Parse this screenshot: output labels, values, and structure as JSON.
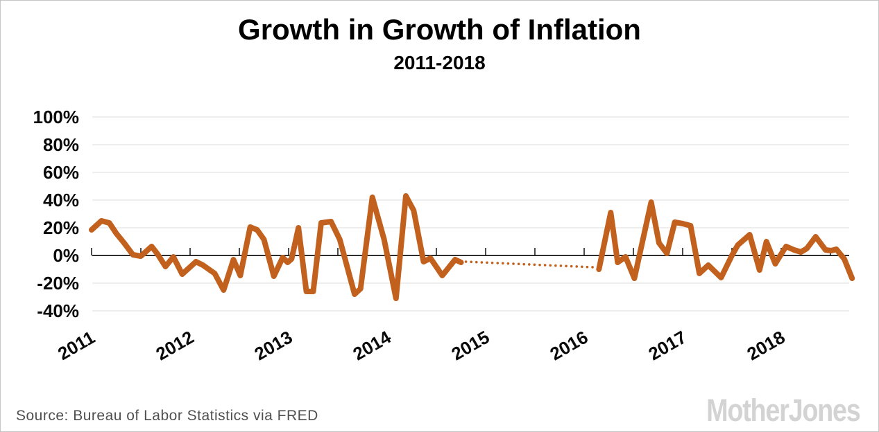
{
  "header": {
    "title": "Growth in Growth of Inflation",
    "subtitle": "2011-2018"
  },
  "footer": {
    "source": "Source: Bureau of Labor Statistics via FRED",
    "watermark": "MotherJones"
  },
  "colors": {
    "line": "#c2601d",
    "grid": "#e3e3e3",
    "axis": "#111111",
    "tick_label": "#0a0a0a",
    "source_text": "#4f4f4f",
    "watermark": "#d3d3d3",
    "border": "#c6c6c6",
    "background": "#ffffff"
  },
  "chart_data": {
    "type": "line",
    "title": "Growth in Growth of Inflation",
    "subtitle": "2011-2018",
    "xlabel": "",
    "ylabel": "",
    "x_unit": "decimal_year",
    "y_unit": "percent",
    "x_range": [
      2011,
      2018.95
    ],
    "ylim": [
      -40,
      100
    ],
    "grid": "horizontal",
    "legend": "none",
    "y_ticks": [
      {
        "value": 100,
        "label": "100%"
      },
      {
        "value": 80,
        "label": "80%"
      },
      {
        "value": 60,
        "label": "60%"
      },
      {
        "value": 40,
        "label": "40%"
      },
      {
        "value": 20,
        "label": "20%"
      },
      {
        "value": 0,
        "label": "0%"
      },
      {
        "value": -20,
        "label": "-20%"
      },
      {
        "value": -40,
        "label": "-40%"
      }
    ],
    "x_ticks": [
      2011,
      2011.5,
      2012,
      2012.5,
      2013,
      2013.5,
      2014,
      2014.5,
      2015,
      2015.5,
      2016,
      2016.5,
      2017,
      2017.5,
      2018,
      2018.5
    ],
    "x_year_labels": [
      {
        "year": 2011,
        "label": "2011"
      },
      {
        "year": 2012,
        "label": "2012"
      },
      {
        "year": 2013,
        "label": "2013"
      },
      {
        "year": 2014,
        "label": "2014"
      },
      {
        "year": 2015,
        "label": "2015"
      },
      {
        "year": 2016,
        "label": "2016"
      },
      {
        "year": 2017,
        "label": "2017"
      },
      {
        "year": 2018,
        "label": "2018"
      }
    ],
    "series": [
      {
        "name": "growth-of-growth-2011-2014",
        "style": "solid",
        "points": [
          [
            2011.0,
            18.5
          ],
          [
            2011.1,
            25.0
          ],
          [
            2011.18,
            23.5
          ],
          [
            2011.25,
            16.0
          ],
          [
            2011.33,
            9.0
          ],
          [
            2011.42,
            0.5
          ],
          [
            2011.5,
            -0.5
          ],
          [
            2011.61,
            6.5
          ],
          [
            2011.67,
            1.0
          ],
          [
            2011.75,
            -8.0
          ],
          [
            2011.83,
            -1.0
          ],
          [
            2011.92,
            -13.5
          ],
          [
            2012.06,
            -4.5
          ],
          [
            2012.13,
            -7.0
          ],
          [
            2012.25,
            -13.0
          ],
          [
            2012.34,
            -25.0
          ],
          [
            2012.44,
            -3.0
          ],
          [
            2012.51,
            -14.5
          ],
          [
            2012.61,
            20.5
          ],
          [
            2012.68,
            18.5
          ],
          [
            2012.75,
            11.5
          ],
          [
            2012.85,
            -15.0
          ],
          [
            2012.94,
            -1.5
          ],
          [
            2012.99,
            -5.0
          ],
          [
            2013.03,
            -2.5
          ],
          [
            2013.1,
            20.0
          ],
          [
            2013.18,
            -26.0
          ],
          [
            2013.25,
            -26.0
          ],
          [
            2013.33,
            23.5
          ],
          [
            2013.43,
            24.5
          ],
          [
            2013.52,
            11.5
          ],
          [
            2013.67,
            -28.0
          ],
          [
            2013.73,
            -24.0
          ],
          [
            2013.85,
            42.0
          ],
          [
            2013.97,
            11.5
          ],
          [
            2014.09,
            -31.0
          ],
          [
            2014.19,
            43.0
          ],
          [
            2014.27,
            32.5
          ],
          [
            2014.37,
            -4.5
          ],
          [
            2014.44,
            -2.0
          ],
          [
            2014.56,
            -14.5
          ],
          [
            2014.69,
            -3.0
          ],
          [
            2014.75,
            -5.0
          ]
        ]
      },
      {
        "name": "interpolated-gap",
        "style": "dotted",
        "points": [
          [
            2014.8,
            -4.5
          ],
          [
            2016.09,
            -8.5
          ]
        ]
      },
      {
        "name": "growth-of-growth-2016-2018",
        "style": "solid",
        "points": [
          [
            2016.15,
            -10.0
          ],
          [
            2016.27,
            31.0
          ],
          [
            2016.34,
            -5.0
          ],
          [
            2016.42,
            -1.0
          ],
          [
            2016.51,
            -16.5
          ],
          [
            2016.68,
            38.5
          ],
          [
            2016.76,
            9.0
          ],
          [
            2016.84,
            1.5
          ],
          [
            2016.92,
            24.0
          ],
          [
            2017.0,
            23.0
          ],
          [
            2017.08,
            21.5
          ],
          [
            2017.17,
            -13.0
          ],
          [
            2017.26,
            -7.0
          ],
          [
            2017.39,
            -16.0
          ],
          [
            2017.5,
            0.0
          ],
          [
            2017.56,
            7.5
          ],
          [
            2017.68,
            15.0
          ],
          [
            2017.78,
            -10.5
          ],
          [
            2017.85,
            10.0
          ],
          [
            2017.94,
            -6.0
          ],
          [
            2018.0,
            1.0
          ],
          [
            2018.05,
            6.5
          ],
          [
            2018.13,
            4.0
          ],
          [
            2018.2,
            2.5
          ],
          [
            2018.26,
            5.0
          ],
          [
            2018.35,
            13.5
          ],
          [
            2018.45,
            4.0
          ],
          [
            2018.51,
            3.5
          ],
          [
            2018.56,
            4.5
          ],
          [
            2018.64,
            -2.5
          ],
          [
            2018.72,
            -16.5
          ]
        ]
      }
    ]
  }
}
